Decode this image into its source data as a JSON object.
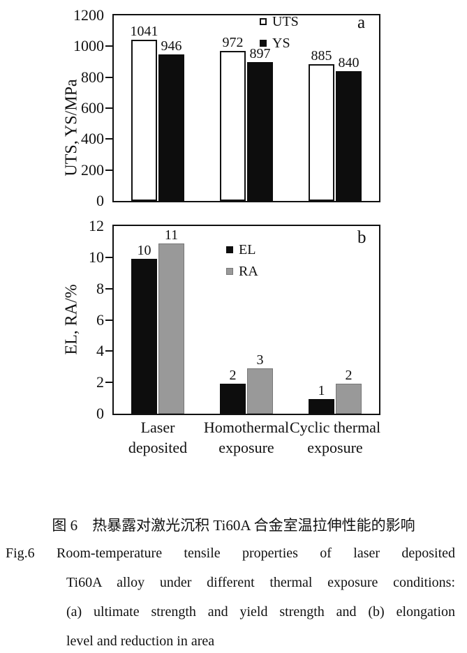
{
  "figure": {
    "caption_cn": "图 6　热暴露对激光沉积 Ti60A 合金室温拉伸性能的影响",
    "caption_en_label": "Fig.6",
    "caption_en_lines": [
      "Room-temperature tensile properties of laser deposited",
      "Ti60A alloy under different thermal exposure conditions:",
      "(a) ultimate strength and yield strength and (b) elongation",
      "level and reduction in area"
    ]
  },
  "chart_data": [
    {
      "type": "bar",
      "panel": "a",
      "ylabel": "UTS, YS/MPa",
      "xlabel": "",
      "ylim": [
        0,
        1200
      ],
      "yticks": [
        0,
        200,
        400,
        600,
        800,
        1000,
        1200
      ],
      "grid": false,
      "legend_position": "top-center-inside",
      "categories": [
        "Laser deposited",
        "Homothermal exposure",
        "Cyclic thermal exposure"
      ],
      "series": [
        {
          "name": "UTS",
          "style": "open",
          "values": [
            1041,
            972,
            885
          ]
        },
        {
          "name": "YS",
          "style": "black",
          "values": [
            946,
            897,
            840
          ]
        }
      ],
      "data_labels": [
        [
          "1041",
          "972",
          "885"
        ],
        [
          "946",
          "897",
          "840"
        ]
      ]
    },
    {
      "type": "bar",
      "panel": "b",
      "ylabel": "EL, RA/%",
      "xlabel": "",
      "ylim": [
        0,
        12
      ],
      "yticks": [
        0,
        2,
        4,
        6,
        8,
        10,
        12
      ],
      "grid": false,
      "legend_position": "top-center-inside",
      "categories": [
        [
          "Laser",
          "deposited"
        ],
        [
          "Homothermal",
          "exposure"
        ],
        [
          "Cyclic thermal",
          "exposure"
        ]
      ],
      "series": [
        {
          "name": "EL",
          "style": "black",
          "values": [
            9.9,
            1.9,
            0.95
          ]
        },
        {
          "name": "RA",
          "style": "gray",
          "values": [
            10.9,
            2.9,
            1.9
          ]
        }
      ],
      "data_labels": [
        [
          "10",
          "2",
          "1"
        ],
        [
          "11",
          "3",
          "2"
        ]
      ]
    }
  ],
  "colors": {
    "bar_black": "#0d0d0d",
    "bar_gray": "#999999",
    "bar_open_fill": "#ffffff",
    "axis": "#111111",
    "text": "#111111",
    "background": "#ffffff"
  }
}
